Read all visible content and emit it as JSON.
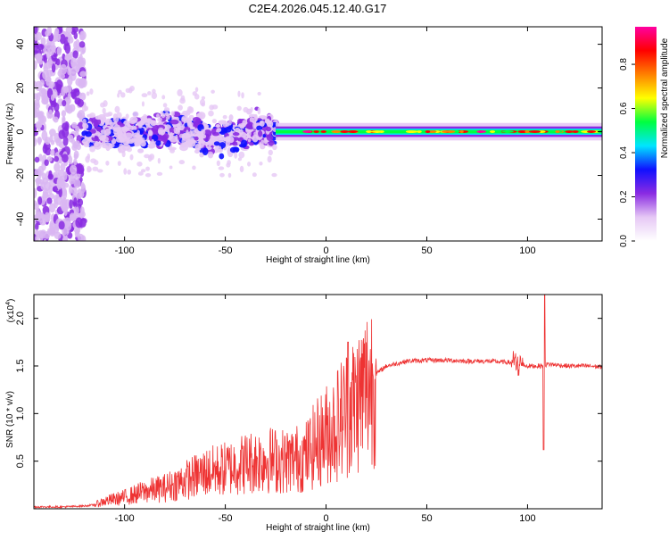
{
  "figure": {
    "title": "C2E4.2026.045.12.40.G17"
  },
  "chart_data": [
    {
      "type": "heatmap",
      "title": "C2E4.2026.045.12.40.G17",
      "xlabel": "Height of straight line (km)",
      "ylabel": "Frequency (Hz)",
      "xlim": [
        -145,
        137
      ],
      "ylim": [
        -50,
        48
      ],
      "xticks": [
        -100,
        -50,
        0,
        50,
        100
      ],
      "xtick_labels": [
        "-100",
        "-50",
        "0",
        "50",
        "100"
      ],
      "yticks": [
        -40,
        -20,
        0,
        20,
        40
      ],
      "ytick_labels": [
        "-40",
        "-20",
        "0",
        "20",
        "40"
      ],
      "colorbar": {
        "label": "Normalized spectral amplitude",
        "range": [
          0,
          0.97
        ],
        "ticks": [
          0.0,
          0.2,
          0.4,
          0.6,
          0.8
        ],
        "tick_labels": [
          "0.0",
          "0.2",
          "0.4",
          "0.6",
          "0.8"
        ],
        "colormap": [
          "#ffffff",
          "#e6c8f5",
          "#8a2be2",
          "#1010ff",
          "#00e5ff",
          "#00ff40",
          "#ffff00",
          "#ff8000",
          "#ff0000",
          "#ff00a0"
        ]
      },
      "features": [
        {
          "description": "scattered noise",
          "x_range": [
            -145,
            -120
          ],
          "y_range": [
            -50,
            48
          ],
          "amplitude": 0.12
        },
        {
          "description": "broad signal band",
          "x_range": [
            -120,
            -25
          ],
          "y_range": [
            -12,
            12
          ],
          "amplitude": 0.25
        },
        {
          "description": "narrow carrier line",
          "x_range": [
            -25,
            137
          ],
          "y_range": [
            -2,
            2
          ],
          "amplitude": 0.55
        }
      ],
      "grid": false
    },
    {
      "type": "line",
      "title": "",
      "xlabel": "Height of straight line (km)",
      "ylabel": "SNR (10 * v/v)",
      "y_multiplier_label": "(x10",
      "y_multiplier_exp": "4",
      "y_multiplier_close": ")",
      "xlim": [
        -145,
        137
      ],
      "ylim": [
        0,
        2.25
      ],
      "xticks": [
        -100,
        -50,
        0,
        50,
        100
      ],
      "xtick_labels": [
        "-100",
        "-50",
        "0",
        "50",
        "100"
      ],
      "yticks": [
        0.5,
        1.0,
        1.5,
        2.0
      ],
      "ytick_labels": [
        "0.5",
        "1.0",
        "1.5",
        "2.0"
      ],
      "color": "#ee3333",
      "series": [
        {
          "name": "SNR",
          "x": [
            -145,
            -130,
            -120,
            -115,
            -110,
            -100,
            -90,
            -80,
            -70,
            -60,
            -50,
            -40,
            -30,
            -20,
            -10,
            -5,
            0,
            5,
            10,
            15,
            20,
            25,
            30,
            40,
            50,
            60,
            70,
            80,
            90,
            95,
            100,
            105,
            108,
            110,
            115,
            120,
            130,
            137
          ],
          "values": [
            0.02,
            0.02,
            0.03,
            0.04,
            0.08,
            0.12,
            0.18,
            0.22,
            0.3,
            0.38,
            0.42,
            0.48,
            0.52,
            0.5,
            0.55,
            0.68,
            0.78,
            0.88,
            1.02,
            1.12,
            1.28,
            1.42,
            1.5,
            1.55,
            1.56,
            1.56,
            1.55,
            1.55,
            1.54,
            1.52,
            1.5,
            1.5,
            1.5,
            1.52,
            1.51,
            1.5,
            1.5,
            1.49
          ]
        }
      ],
      "annotations": [
        {
          "description": "sharp peak",
          "x": 108.5,
          "y": 2.25
        },
        {
          "description": "sharp dip",
          "x": 108,
          "y": 0.62
        },
        {
          "description": "spike",
          "x": 11,
          "y": 1.75
        }
      ],
      "grid": false
    }
  ]
}
